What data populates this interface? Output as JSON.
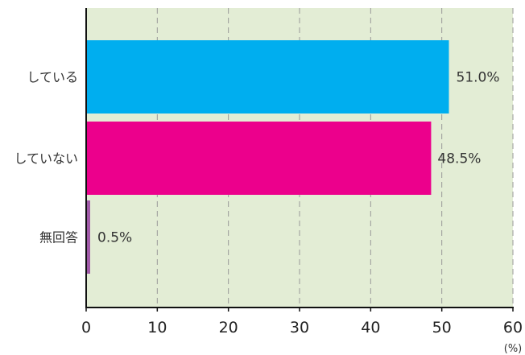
{
  "chart_data": {
    "type": "bar",
    "orientation": "horizontal",
    "categories": [
      "している",
      "していない",
      "無回答"
    ],
    "values": [
      51.0,
      48.5,
      0.5
    ],
    "value_labels": [
      "51.0%",
      "48.5%",
      "0.5%"
    ],
    "bar_colors": [
      "#00aeef",
      "#ec008c",
      "#a05aa8"
    ],
    "xlim": [
      0,
      60
    ],
    "x_ticks": [
      0,
      10,
      20,
      30,
      40,
      50,
      60
    ],
    "tick_labels": [
      "0",
      "10",
      "20",
      "30",
      "40",
      "50",
      "60"
    ],
    "unit_label": "(%)",
    "grid": true,
    "grid_style": "dashed vertical",
    "plot_background": "#e3edd5",
    "title": "",
    "xlabel": "",
    "ylabel": ""
  }
}
